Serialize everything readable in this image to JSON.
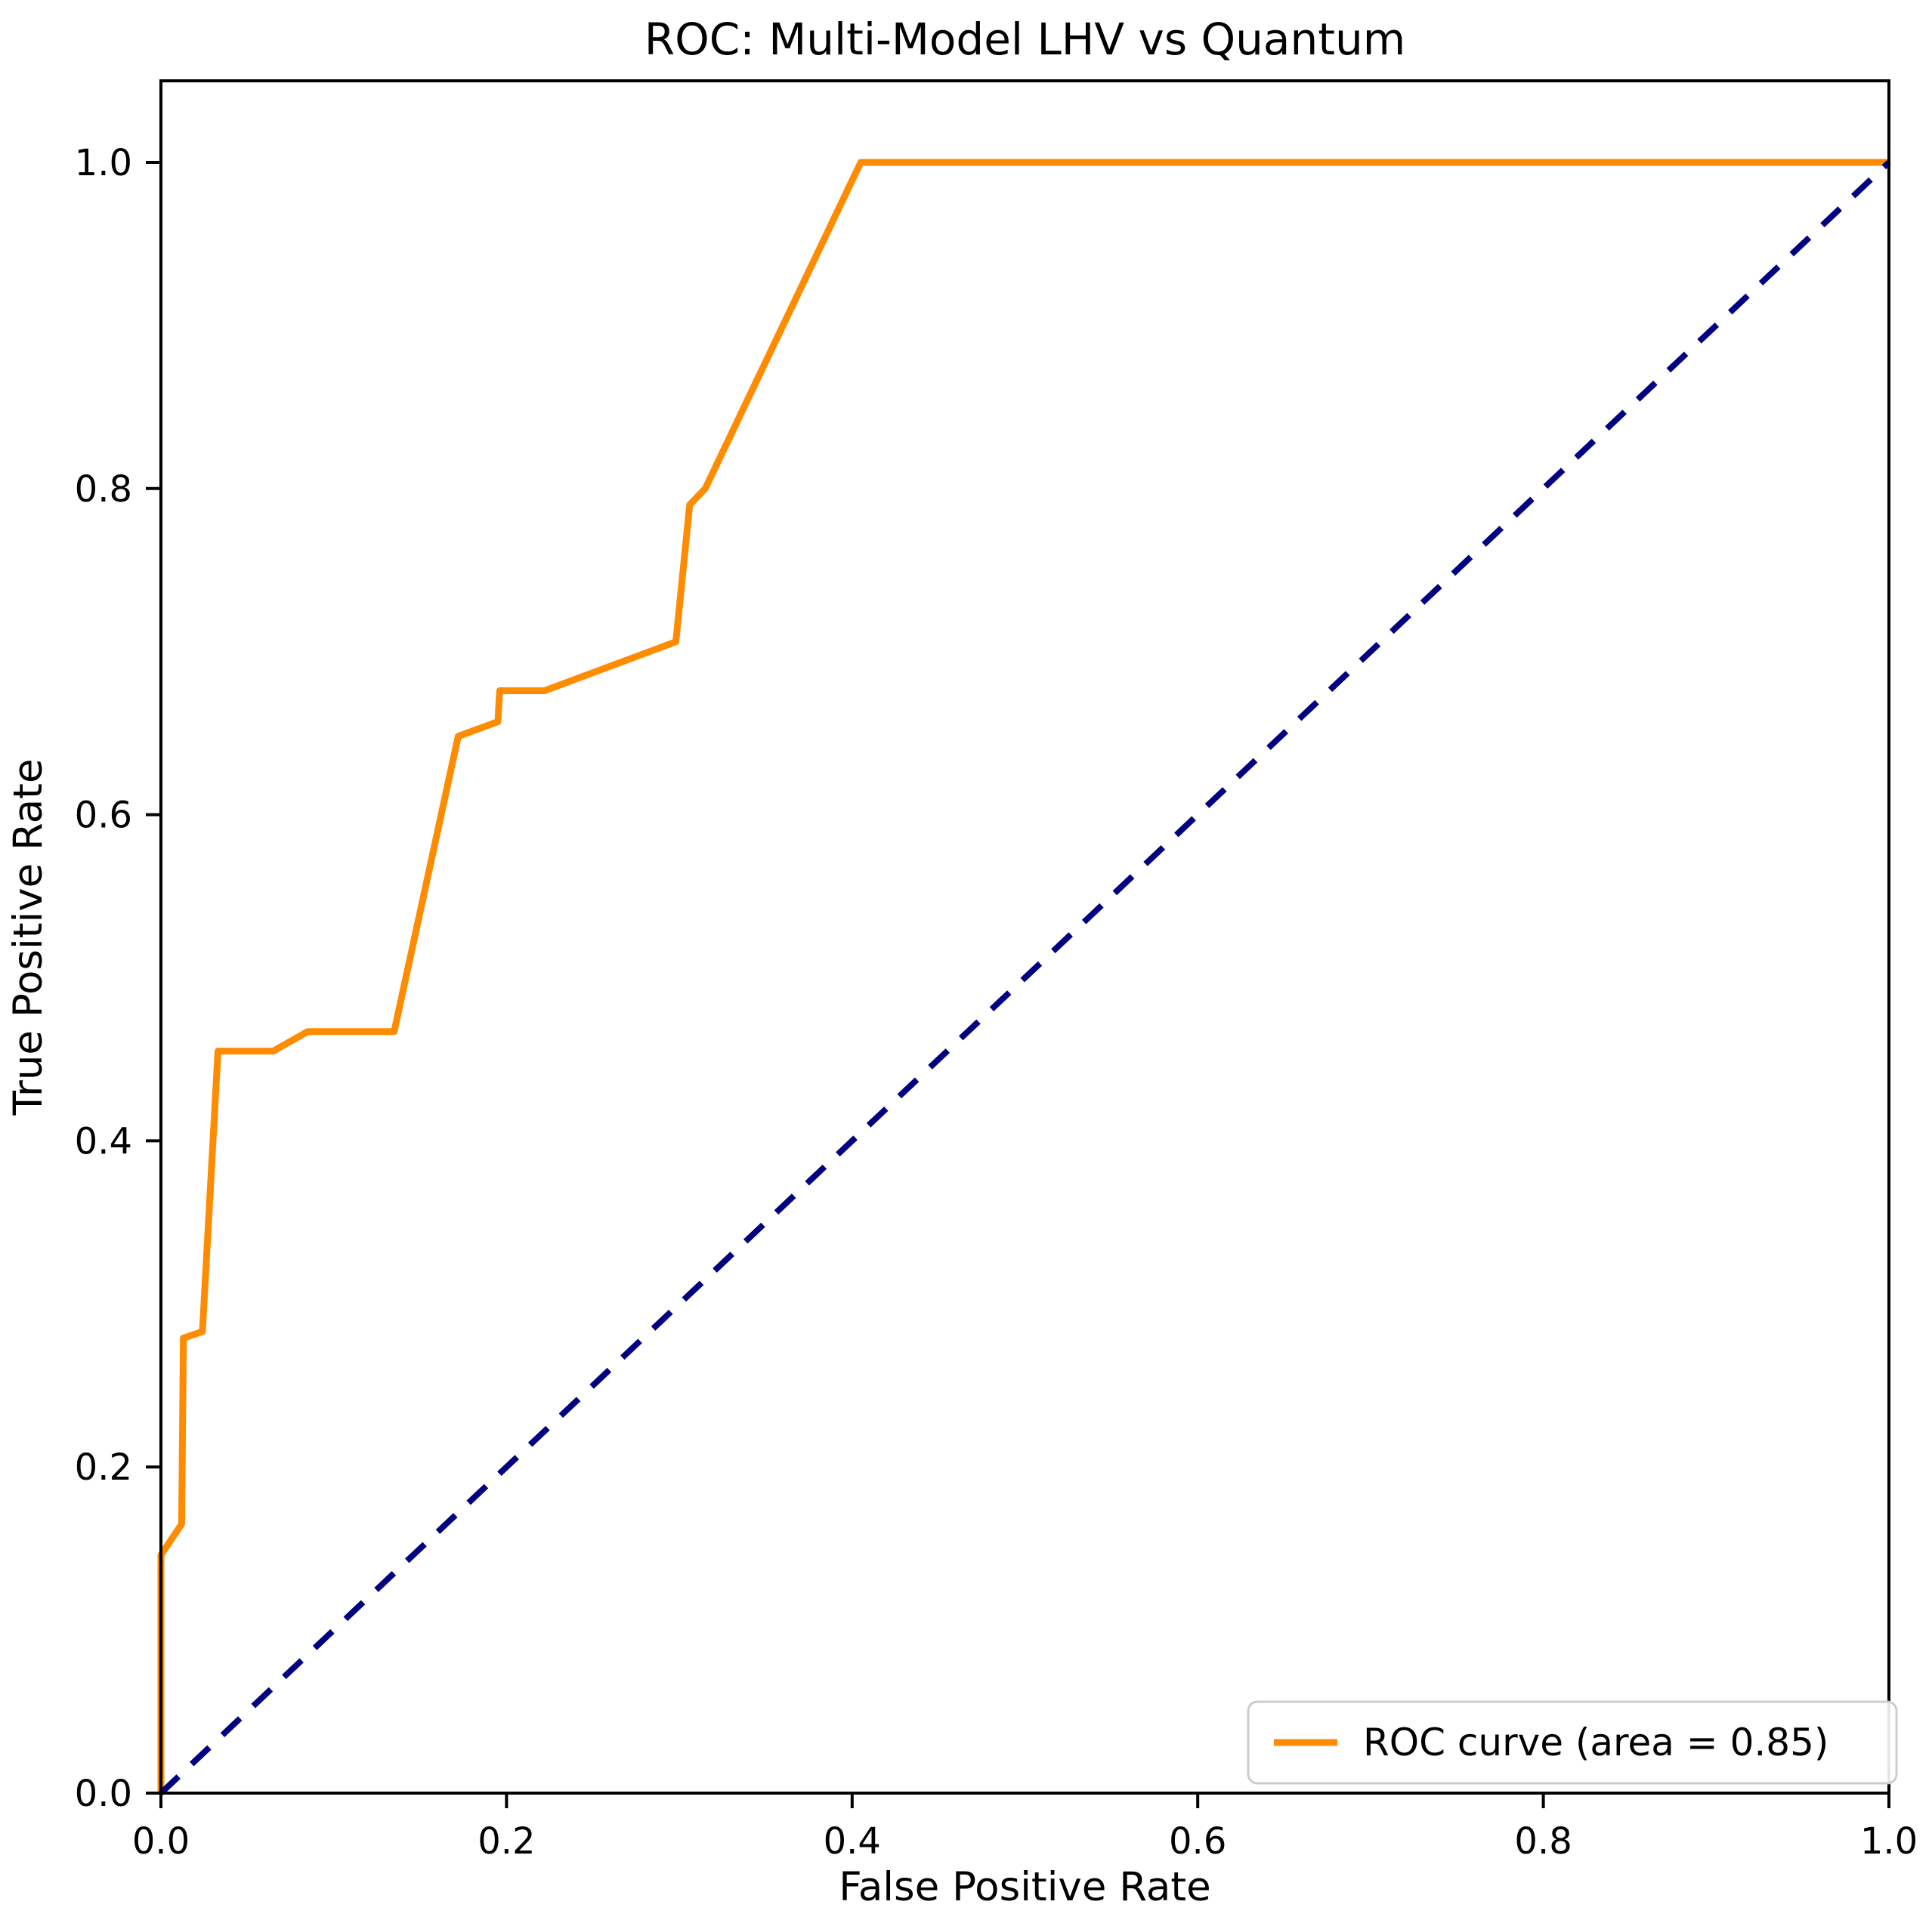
{
  "figure": {
    "title": "ROC: Multi-Model LHV vs Quantum"
  },
  "chart_data": {
    "type": "line",
    "title": "ROC: Multi-Model LHV vs Quantum",
    "xlabel": "False Positive Rate",
    "ylabel": "True Positive Rate",
    "xlim": [
      0.0,
      1.0
    ],
    "ylim": [
      0.0,
      1.05
    ],
    "x_ticks": [
      0.0,
      0.2,
      0.4,
      0.6,
      0.8,
      1.0
    ],
    "y_ticks": [
      0.0,
      0.2,
      0.4,
      0.6,
      0.8,
      1.0
    ],
    "tick_format": "one-decimal",
    "grid": false,
    "auc": 0.85,
    "legend": {
      "position": "lower right",
      "entries": [
        {
          "label": "ROC curve (area = 0.85)",
          "color": "#FF8C00",
          "style": "solid"
        }
      ]
    },
    "series": [
      {
        "name": "ROC curve",
        "color": "#FF8C00",
        "style": "solid",
        "points": [
          [
            0.0,
            0.0
          ],
          [
            0.0,
            0.146
          ],
          [
            0.012,
            0.165
          ],
          [
            0.013,
            0.279
          ],
          [
            0.024,
            0.283
          ],
          [
            0.033,
            0.455
          ],
          [
            0.065,
            0.455
          ],
          [
            0.085,
            0.467
          ],
          [
            0.135,
            0.467
          ],
          [
            0.172,
            0.648
          ],
          [
            0.195,
            0.657
          ],
          [
            0.196,
            0.676
          ],
          [
            0.222,
            0.676
          ],
          [
            0.298,
            0.706
          ],
          [
            0.306,
            0.79
          ],
          [
            0.315,
            0.8
          ],
          [
            0.405,
            1.0
          ],
          [
            1.0,
            1.0
          ]
        ]
      },
      {
        "name": "chance diagonal",
        "color": "#000080",
        "style": "dashed",
        "points": [
          [
            0.0,
            0.0
          ],
          [
            1.0,
            1.0
          ]
        ]
      }
    ]
  },
  "colors": {
    "roc_curve": "#FF8C00",
    "diagonal": "#000080",
    "spine": "#000000",
    "background": "#FFFFFF",
    "legend_border": "#CCCCCC"
  }
}
